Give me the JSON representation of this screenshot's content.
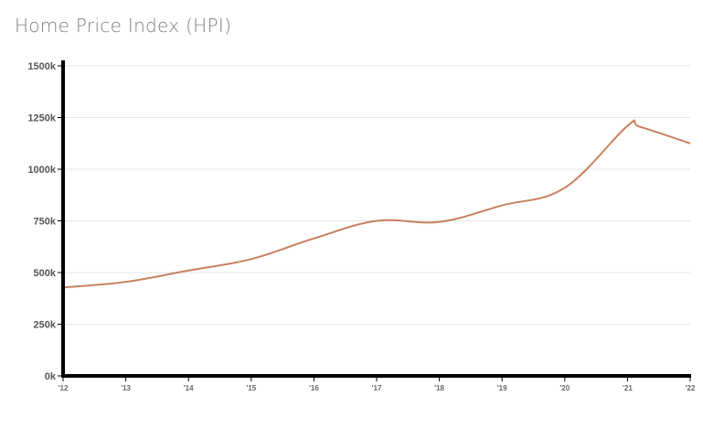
{
  "chart_data": {
    "type": "line",
    "title": "Home Price Index (HPI)",
    "xlabel": "",
    "ylabel": "",
    "categories": [
      "'12",
      "'13",
      "'14",
      "'15",
      "'16",
      "'17",
      "'18",
      "'19",
      "'20",
      "'21",
      "'22"
    ],
    "y_ticks": [
      0,
      250,
      500,
      750,
      1000,
      1250,
      1500
    ],
    "y_tick_labels": [
      "0k",
      "250k",
      "500k",
      "750k",
      "1000k",
      "1250k",
      "1500k"
    ],
    "ylim": [
      0,
      1500
    ],
    "grid": true,
    "legend": "none",
    "line_color": "#c8815e",
    "series": [
      {
        "x": [
          2012.0,
          2013.0,
          2014.0,
          2015.0,
          2016.0,
          2017.0,
          2018.0,
          2019.0,
          2020.0,
          2021.0,
          2021.2,
          2022.0
        ],
        "values": [
          428,
          455,
          510,
          565,
          665,
          750,
          745,
          825,
          910,
          1210,
          1205,
          1125
        ]
      }
    ]
  }
}
